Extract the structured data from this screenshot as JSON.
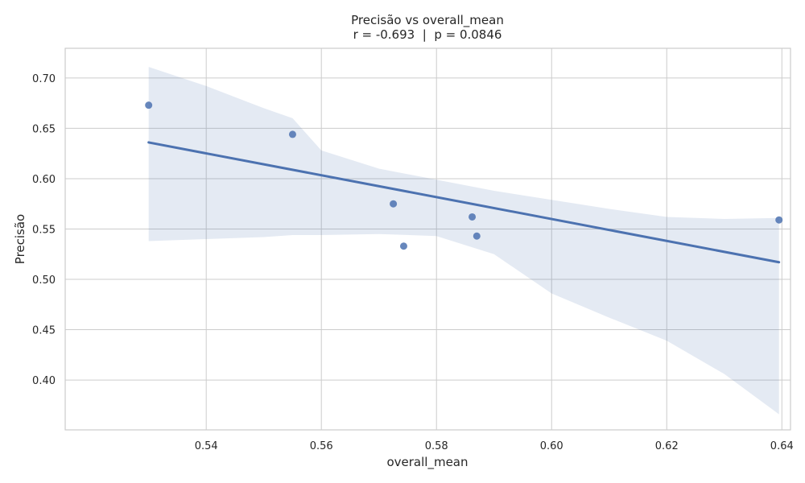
{
  "chart_data": {
    "type": "scatter",
    "title": "Precisão vs overall_mean",
    "subtitle": "r = -0.693  |  p = 0.0846",
    "xlabel": "overall_mean",
    "ylabel": "Precisão",
    "xlim": [
      0.5155,
      0.6415
    ],
    "ylim": [
      0.3505,
      0.7295
    ],
    "xticks": [
      0.54,
      0.56,
      0.58,
      0.6,
      0.62,
      0.64
    ],
    "xtick_labels": [
      "0.54",
      "0.56",
      "0.58",
      "0.60",
      "0.62",
      "0.64"
    ],
    "yticks": [
      0.4,
      0.45,
      0.5,
      0.55,
      0.6,
      0.65,
      0.7
    ],
    "ytick_labels": [
      "0.40",
      "0.45",
      "0.50",
      "0.55",
      "0.60",
      "0.65",
      "0.70"
    ],
    "grid": true,
    "points": [
      {
        "x": 0.53,
        "y": 0.673
      },
      {
        "x": 0.555,
        "y": 0.644
      },
      {
        "x": 0.5725,
        "y": 0.575
      },
      {
        "x": 0.5743,
        "y": 0.533
      },
      {
        "x": 0.5862,
        "y": 0.562
      },
      {
        "x": 0.587,
        "y": 0.543
      },
      {
        "x": 0.6395,
        "y": 0.559
      }
    ],
    "regression": {
      "x": [
        0.53,
        0.6395
      ],
      "y": [
        0.636,
        0.517
      ]
    },
    "confidence_band": {
      "x": [
        0.53,
        0.54,
        0.55,
        0.555,
        0.56,
        0.57,
        0.58,
        0.59,
        0.6,
        0.61,
        0.62,
        0.63,
        0.6395
      ],
      "upper": [
        0.711,
        0.692,
        0.67,
        0.66,
        0.628,
        0.61,
        0.599,
        0.588,
        0.579,
        0.57,
        0.562,
        0.56,
        0.561
      ],
      "lower": [
        0.538,
        0.54,
        0.542,
        0.544,
        0.544,
        0.545,
        0.543,
        0.525,
        0.486,
        0.462,
        0.439,
        0.406,
        0.366
      ]
    },
    "colors": {
      "series": "#4c72b0",
      "band": "#4c72b0",
      "grid": "#cccccc",
      "text": "#262626"
    }
  }
}
